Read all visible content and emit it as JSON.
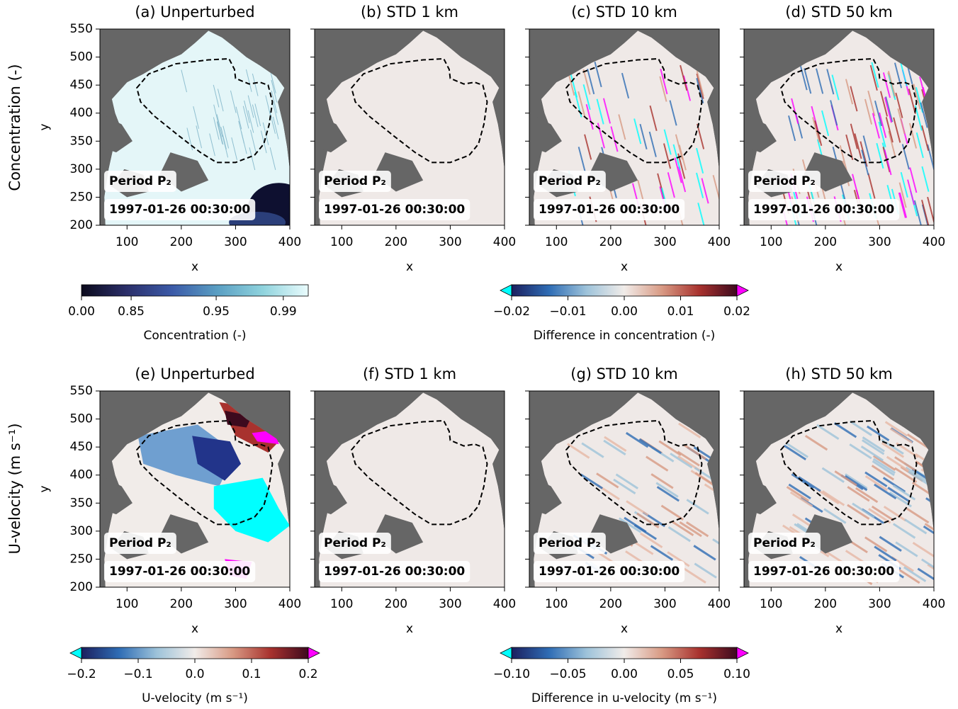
{
  "row_titles": [
    "Concentration (-)",
    "U-velocity (m s⁻¹)"
  ],
  "chart_data": [
    {
      "type": "heatmap",
      "title": "(a) Unperturbed",
      "xlabel": "x",
      "ylabel": "y",
      "xlim": [
        50,
        400
      ],
      "ylim": [
        200,
        550
      ],
      "xticks": [
        100,
        200,
        300,
        400
      ],
      "yticks": [
        200,
        250,
        300,
        350,
        400,
        450,
        500,
        550
      ],
      "show_yticklabels": true,
      "annotations": [
        "Period P₂",
        "1997-01-26 00:30:00"
      ],
      "background": "#666666"
    },
    {
      "type": "heatmap",
      "title": "(b) STD 1 km",
      "xlabel": "x",
      "xlim": [
        50,
        400
      ],
      "ylim": [
        200,
        550
      ],
      "xticks": [
        100,
        200,
        300,
        400
      ],
      "yticks": [
        200,
        250,
        300,
        350,
        400,
        450,
        500,
        550
      ],
      "show_yticklabels": false,
      "annotations": [
        "Period P₂",
        "1997-01-26 00:30:00"
      ],
      "background": "#666666"
    },
    {
      "type": "heatmap",
      "title": "(c) STD 10 km",
      "xlabel": "x",
      "xlim": [
        50,
        400
      ],
      "ylim": [
        200,
        550
      ],
      "xticks": [
        100,
        200,
        300,
        400
      ],
      "yticks": [
        200,
        250,
        300,
        350,
        400,
        450,
        500,
        550
      ],
      "show_yticklabels": false,
      "annotations": [
        "Period P₂",
        "1997-01-26 00:30:00"
      ],
      "background": "#666666"
    },
    {
      "type": "heatmap",
      "title": "(d) STD 50 km",
      "xlabel": "x",
      "xlim": [
        50,
        400
      ],
      "ylim": [
        200,
        550
      ],
      "xticks": [
        100,
        200,
        300,
        400
      ],
      "yticks": [
        200,
        250,
        300,
        350,
        400,
        450,
        500,
        550
      ],
      "show_yticklabels": false,
      "annotations": [
        "Period P₂",
        "1997-01-26 00:30:00"
      ],
      "background": "#666666"
    },
    {
      "type": "heatmap",
      "title": "(e) Unperturbed",
      "xlabel": "x",
      "ylabel": "y",
      "xlim": [
        50,
        400
      ],
      "ylim": [
        200,
        550
      ],
      "xticks": [
        100,
        200,
        300,
        400
      ],
      "yticks": [
        200,
        250,
        300,
        350,
        400,
        450,
        500,
        550
      ],
      "show_yticklabels": true,
      "annotations": [
        "Period P₂",
        "1997-01-26 00:30:00"
      ],
      "background": "#666666"
    },
    {
      "type": "heatmap",
      "title": "(f) STD 1 km",
      "xlabel": "x",
      "xlim": [
        50,
        400
      ],
      "ylim": [
        200,
        550
      ],
      "xticks": [
        100,
        200,
        300,
        400
      ],
      "yticks": [
        200,
        250,
        300,
        350,
        400,
        450,
        500,
        550
      ],
      "show_yticklabels": false,
      "annotations": [
        "Period P₂",
        "1997-01-26 00:30:00"
      ],
      "background": "#666666"
    },
    {
      "type": "heatmap",
      "title": "(g) STD 10 km",
      "xlabel": "x",
      "xlim": [
        50,
        400
      ],
      "ylim": [
        200,
        550
      ],
      "xticks": [
        100,
        200,
        300,
        400
      ],
      "yticks": [
        200,
        250,
        300,
        350,
        400,
        450,
        500,
        550
      ],
      "show_yticklabels": false,
      "annotations": [
        "Period P₂",
        "1997-01-26 00:30:00"
      ],
      "background": "#666666"
    },
    {
      "type": "heatmap",
      "title": "(h) STD 50 km",
      "xlabel": "x",
      "xlim": [
        50,
        400
      ],
      "ylim": [
        200,
        550
      ],
      "xticks": [
        100,
        200,
        300,
        400
      ],
      "yticks": [
        200,
        250,
        300,
        350,
        400,
        450,
        500,
        550
      ],
      "show_yticklabels": false,
      "annotations": [
        "Period P₂",
        "1997-01-26 00:30:00"
      ],
      "background": "#666666"
    }
  ],
  "colorbars": [
    {
      "label": "Concentration (-)",
      "lim": [
        0,
        1
      ],
      "ticks": [
        {
          "value": 0,
          "label": "0.00"
        },
        0.85,
        0.95,
        0.99
      ],
      "colors": [
        "#0b0a1c",
        "#2b2f6a",
        "#3b5aa8",
        "#5a9fc3",
        "#8fd3dd",
        "#eafcfd"
      ]
    },
    {
      "label": "Difference in concentration (-)",
      "lim": [
        -0.02,
        0.02
      ],
      "ticks": [
        {
          "value": -0.02,
          "label": "−0.02"
        },
        {
          "value": -0.01,
          "label": "−0.01"
        },
        {
          "value": 0,
          "label": "0.00"
        },
        0.01,
        0.02
      ],
      "colors": [
        "#1b1f5e",
        "#2f6db5",
        "#9ec3da",
        "#f1ece9",
        "#d89a84",
        "#a8322e",
        "#3d0a1e"
      ],
      "under_color": "#00ffff",
      "over_color": "#ff00ff"
    },
    {
      "label": "U-velocity (m s⁻¹)",
      "lim": [
        -0.2,
        0.2
      ],
      "ticks": [
        {
          "value": -0.2,
          "label": "−0.2"
        },
        {
          "value": -0.1,
          "label": "−0.1"
        },
        {
          "value": 0,
          "label": "0.0"
        },
        0.1,
        0.2
      ],
      "colors": [
        "#1b1f5e",
        "#2f6db5",
        "#9ec3da",
        "#f1ece9",
        "#d89a84",
        "#a8322e",
        "#3d0a1e"
      ],
      "under_color": "#00ffff",
      "over_color": "#ff00ff"
    },
    {
      "label": "Difference in u-velocity (m s⁻¹)",
      "lim": [
        -0.1,
        0.1
      ],
      "ticks": [
        {
          "value": -0.1,
          "label": "−0.10"
        },
        {
          "value": -0.05,
          "label": "−0.05"
        },
        {
          "value": 0,
          "label": "0.00"
        },
        0.05,
        {
          "value": 0.1,
          "label": "0.10"
        }
      ],
      "colors": [
        "#1b1f5e",
        "#2f6db5",
        "#9ec3da",
        "#f1ece9",
        "#d89a84",
        "#a8322e",
        "#3d0a1e"
      ],
      "under_color": "#00ffff",
      "over_color": "#ff00ff"
    }
  ]
}
